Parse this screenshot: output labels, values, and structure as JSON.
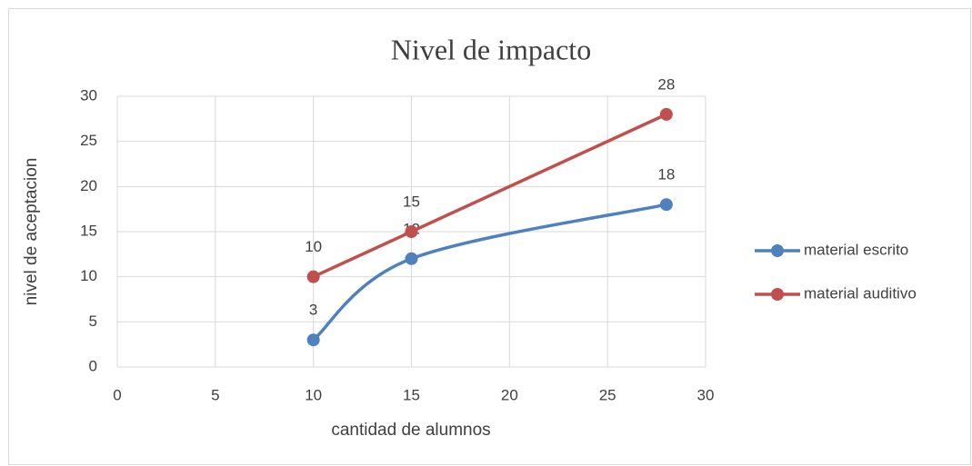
{
  "chart_data": {
    "type": "line",
    "title": "Nivel de impacto",
    "x_label": "cantidad de alumnos",
    "y_label": "nivel de aceptacion",
    "series": [
      {
        "name": "material escrito",
        "color": "#4f81bd",
        "smooth": true,
        "x": [
          10,
          15,
          28
        ],
        "values": [
          3,
          12,
          18
        ]
      },
      {
        "name": "material auditivo",
        "color": "#c0504d",
        "smooth": false,
        "x": [
          10,
          15,
          28
        ],
        "values": [
          10,
          15,
          28
        ]
      }
    ],
    "xlim": [
      0,
      30
    ],
    "xticks": [
      0,
      5,
      10,
      15,
      20,
      25,
      30
    ],
    "ylim": [
      0,
      30
    ],
    "yticks": [
      0,
      5,
      10,
      15,
      20,
      25,
      30
    ],
    "grid": true,
    "legend": "right",
    "data_labels": true
  }
}
